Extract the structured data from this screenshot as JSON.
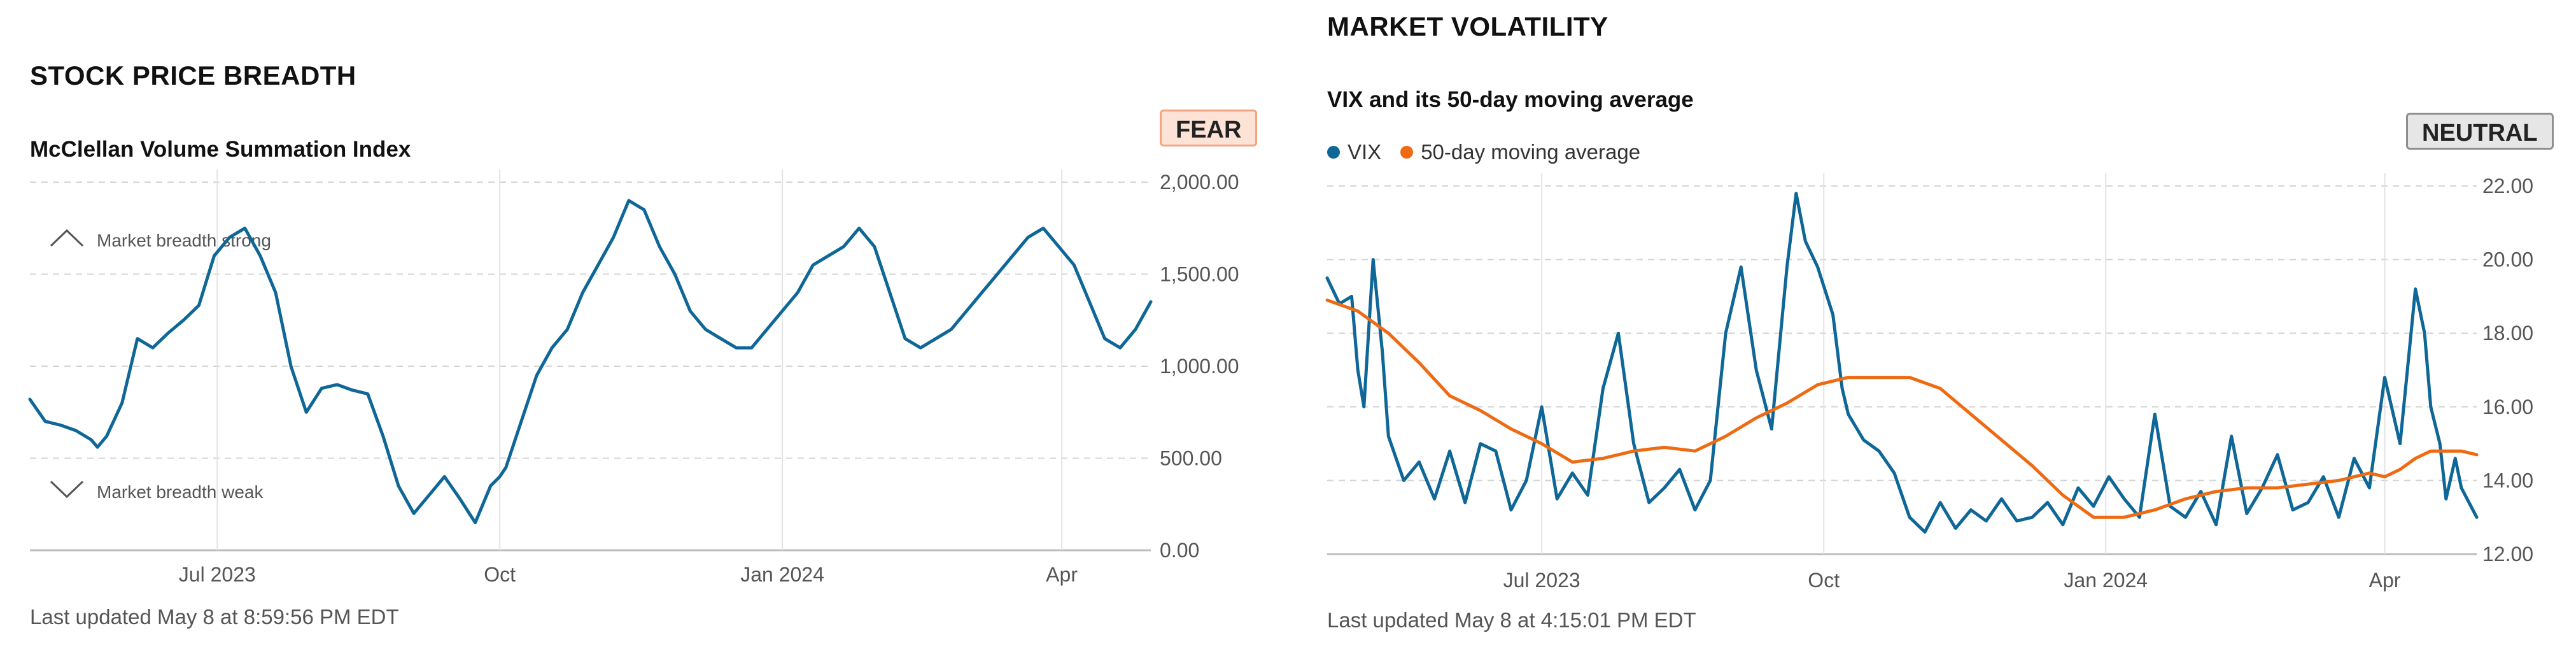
{
  "colors": {
    "vix": "#0e6797",
    "ma": "#ee6a13",
    "breadth": "#0e6797"
  },
  "left": {
    "heading": "STOCK PRICE BREADTH",
    "subtitle": "McClellan Volume Summation Index",
    "badge": "FEAR",
    "annotation_strong": "Market breadth strong",
    "annotation_weak": "Market breadth weak",
    "updated": "Last updated May 8 at 8:59:56 PM EDT"
  },
  "right": {
    "heading": "MARKET VOLATILITY",
    "subtitle": "VIX and its 50-day moving average",
    "badge": "NEUTRAL",
    "legend": [
      {
        "label": "VIX",
        "color": "#0e6797"
      },
      {
        "label": "50-day moving average",
        "color": "#ee6a13"
      }
    ],
    "updated": "Last updated May 8 at 4:15:01 PM EDT"
  },
  "chart_data": [
    {
      "type": "line",
      "title": "McClellan Volume Summation Index",
      "ylim": [
        0,
        2000
      ],
      "yticks": [
        0,
        500,
        1000,
        1500,
        2000
      ],
      "ytick_labels": [
        "0.00",
        "500.00",
        "1,000.00",
        "1,500.00",
        "2,000.00"
      ],
      "xlim": [
        0,
        365
      ],
      "xticks": [
        {
          "x": 61,
          "label": "Jul 2023"
        },
        {
          "x": 153,
          "label": "Oct"
        },
        {
          "x": 245,
          "label": "Jan 2024"
        },
        {
          "x": 336,
          "label": "Apr"
        }
      ],
      "series": [
        {
          "name": "McClellan Volume Summation Index",
          "color": "#0e6797",
          "x": [
            0,
            5,
            10,
            15,
            20,
            22,
            25,
            30,
            35,
            40,
            45,
            50,
            55,
            60,
            65,
            70,
            75,
            80,
            85,
            90,
            95,
            100,
            105,
            110,
            115,
            120,
            125,
            130,
            135,
            140,
            145,
            150,
            153,
            155,
            160,
            165,
            170,
            175,
            180,
            185,
            190,
            195,
            200,
            205,
            210,
            215,
            220,
            225,
            230,
            235,
            240,
            245,
            250,
            255,
            260,
            265,
            270,
            275,
            280,
            285,
            290,
            295,
            300,
            305,
            310,
            315,
            320,
            325,
            330,
            335,
            340,
            345,
            350,
            355,
            360,
            365
          ],
          "values": [
            820,
            700,
            680,
            650,
            600,
            560,
            620,
            800,
            1150,
            1100,
            1180,
            1250,
            1330,
            1600,
            1700,
            1750,
            1600,
            1400,
            1000,
            750,
            880,
            900,
            870,
            850,
            620,
            350,
            200,
            300,
            400,
            280,
            150,
            350,
            400,
            450,
            700,
            950,
            1100,
            1200,
            1400,
            1550,
            1700,
            1900,
            1850,
            1650,
            1500,
            1300,
            1200,
            1150,
            1100,
            1100,
            1200,
            1300,
            1400,
            1550,
            1600,
            1650,
            1750,
            1650,
            1400,
            1150,
            1100,
            1150,
            1200,
            1300,
            1400,
            1500,
            1600,
            1700,
            1750,
            1650,
            1550,
            1350,
            1150,
            1100,
            1200,
            1350
          ]
        }
      ]
    },
    {
      "type": "line",
      "title": "VIX and its 50-day moving average",
      "ylim": [
        12,
        22
      ],
      "yticks": [
        12,
        14,
        16,
        18,
        20,
        22
      ],
      "ytick_labels": [
        "12.00",
        "14.00",
        "16.00",
        "18.00",
        "20.00",
        "22.00"
      ],
      "xlim": [
        0,
        375
      ],
      "xticks": [
        {
          "x": 70,
          "label": "Jul 2023"
        },
        {
          "x": 162,
          "label": "Oct"
        },
        {
          "x": 254,
          "label": "Jan 2024"
        },
        {
          "x": 345,
          "label": "Apr"
        }
      ],
      "series": [
        {
          "name": "VIX",
          "color": "#0e6797",
          "x": [
            0,
            4,
            8,
            10,
            12,
            15,
            18,
            20,
            25,
            30,
            35,
            40,
            45,
            50,
            55,
            60,
            65,
            70,
            75,
            80,
            85,
            90,
            95,
            100,
            105,
            110,
            115,
            120,
            125,
            130,
            135,
            140,
            145,
            150,
            153,
            156,
            160,
            165,
            168,
            170,
            175,
            180,
            185,
            190,
            195,
            200,
            205,
            210,
            215,
            220,
            225,
            230,
            235,
            240,
            245,
            250,
            255,
            260,
            265,
            270,
            275,
            280,
            285,
            290,
            295,
            300,
            305,
            310,
            315,
            320,
            325,
            330,
            335,
            340,
            345,
            350,
            353,
            355,
            358,
            360,
            363,
            365,
            368,
            370,
            375
          ],
          "values": [
            19.5,
            18.8,
            19.0,
            17.0,
            16.0,
            20.0,
            17.5,
            15.2,
            14.0,
            14.5,
            13.5,
            14.8,
            13.4,
            15.0,
            14.8,
            13.2,
            14.0,
            16.0,
            13.5,
            14.2,
            13.6,
            16.5,
            18.0,
            15.0,
            13.4,
            13.8,
            14.3,
            13.2,
            14.0,
            18.0,
            19.8,
            17.0,
            15.4,
            19.8,
            21.8,
            20.5,
            19.8,
            18.5,
            16.5,
            15.8,
            15.1,
            14.8,
            14.2,
            13.0,
            12.6,
            13.4,
            12.7,
            13.2,
            12.9,
            13.5,
            12.9,
            13.0,
            13.4,
            12.8,
            13.8,
            13.3,
            14.1,
            13.5,
            13.0,
            15.8,
            13.3,
            13.0,
            13.7,
            12.8,
            15.2,
            13.1,
            13.8,
            14.7,
            13.2,
            13.4,
            14.1,
            13.0,
            14.6,
            13.8,
            16.8,
            15.0,
            17.5,
            19.2,
            18.0,
            16.0,
            15.0,
            13.5,
            14.6,
            13.8,
            13.0
          ]
        },
        {
          "name": "50-day moving average",
          "color": "#ee6a13",
          "x": [
            0,
            10,
            20,
            30,
            40,
            50,
            60,
            70,
            80,
            90,
            100,
            110,
            120,
            130,
            140,
            150,
            160,
            170,
            180,
            190,
            200,
            210,
            220,
            230,
            240,
            250,
            260,
            270,
            280,
            290,
            300,
            310,
            320,
            330,
            340,
            345,
            350,
            355,
            360,
            365,
            370,
            375
          ],
          "values": [
            18.9,
            18.6,
            18.0,
            17.2,
            16.3,
            15.9,
            15.4,
            15.0,
            14.5,
            14.6,
            14.8,
            14.9,
            14.8,
            15.2,
            15.7,
            16.1,
            16.6,
            16.8,
            16.8,
            16.8,
            16.5,
            15.8,
            15.1,
            14.4,
            13.6,
            13.0,
            13.0,
            13.2,
            13.5,
            13.7,
            13.8,
            13.8,
            13.9,
            14.0,
            14.2,
            14.1,
            14.3,
            14.6,
            14.8,
            14.8,
            14.8,
            14.7
          ]
        }
      ]
    }
  ]
}
